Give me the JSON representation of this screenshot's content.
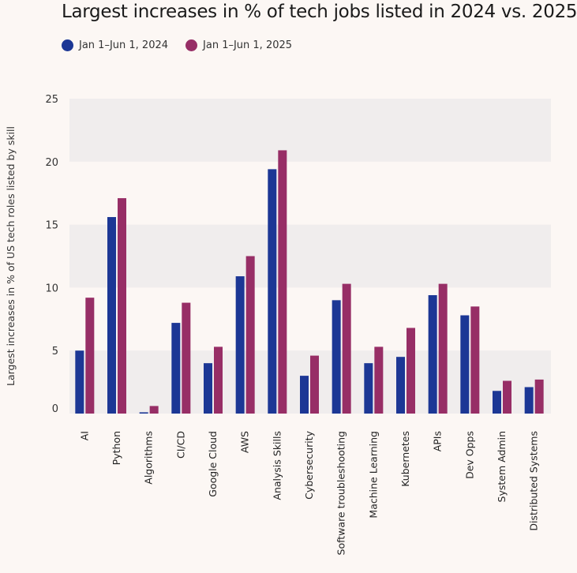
{
  "chart_data": {
    "type": "bar",
    "title": "Largest increases in % of tech jobs listed in 2024 vs. 2025",
    "xlabel": "",
    "ylabel": "Largest increases in % of US tech roles listed by skill",
    "ylim": [
      0,
      25
    ],
    "yticks": [
      0,
      5,
      10,
      15,
      20,
      25
    ],
    "legend_position": "top-left",
    "categories": [
      "AI",
      "Python",
      "Algorithms",
      "CI/CD",
      "Google Cloud",
      "AWS",
      "Analysis Skills",
      "Cybersecurity",
      "Software troubleshooting",
      "Machine Learning",
      "Kubernetes",
      "APIs",
      "Dev Opps",
      "System Admin",
      "Distributed Systems"
    ],
    "series": [
      {
        "name": "Jan 1–Jun 1, 2024",
        "color": "#1c3795",
        "values": [
          5.0,
          15.6,
          0.1,
          7.2,
          4.0,
          10.9,
          19.4,
          3.0,
          9.0,
          4.0,
          4.5,
          9.4,
          7.8,
          1.8,
          2.1
        ]
      },
      {
        "name": "Jan 1–Jun 1, 2025",
        "color": "#972e66",
        "values": [
          9.2,
          17.1,
          0.6,
          8.8,
          5.3,
          12.5,
          20.9,
          4.6,
          10.3,
          5.3,
          6.8,
          10.3,
          8.5,
          2.6,
          2.7
        ]
      }
    ]
  }
}
